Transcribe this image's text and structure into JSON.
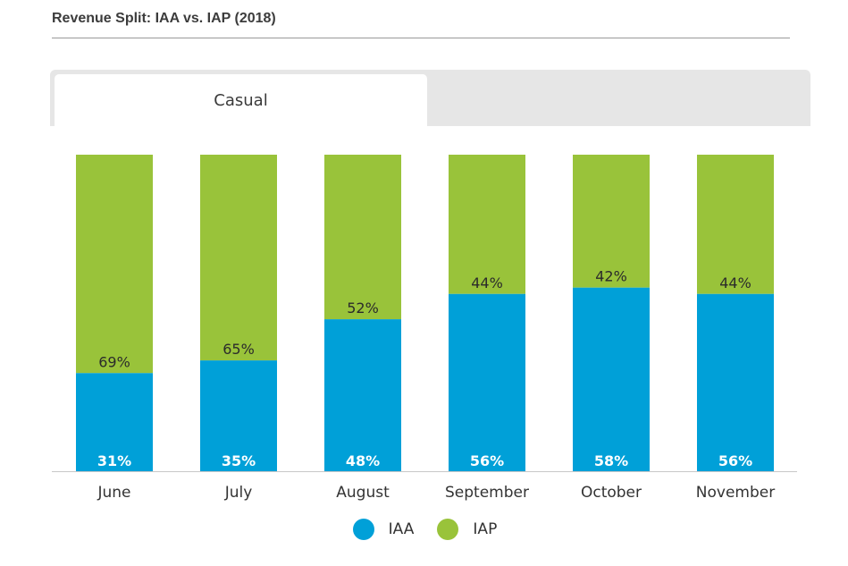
{
  "header": {
    "title": "Revenue Split: IAA vs. IAP (2018)"
  },
  "tabs": [
    {
      "label": "Casual",
      "active": true
    },
    {
      "label": "",
      "active": false
    }
  ],
  "colors": {
    "IAA": "#00a0d8",
    "IAP": "#99c33a"
  },
  "chart_data": {
    "type": "bar",
    "stacked": true,
    "categories": [
      "June",
      "July",
      "August",
      "September",
      "October",
      "November"
    ],
    "series": [
      {
        "name": "IAA",
        "values": [
          31,
          35,
          48,
          56,
          58,
          56
        ],
        "labels": [
          "31%",
          "35%",
          "48%",
          "56%",
          "58%",
          "56%"
        ]
      },
      {
        "name": "IAP",
        "values": [
          69,
          65,
          52,
          44,
          42,
          44
        ],
        "labels": [
          "69%",
          "65%",
          "52%",
          "44%",
          "42%",
          "44%"
        ]
      }
    ],
    "ylim": [
      0,
      100
    ],
    "grid": false,
    "legend_position": "bottom-center"
  }
}
